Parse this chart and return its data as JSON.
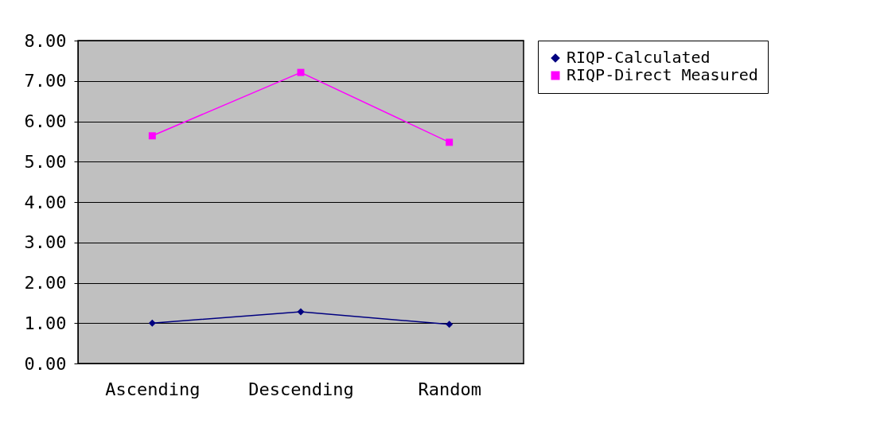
{
  "chart_data": {
    "type": "line",
    "categories": [
      "Ascending",
      "Descending",
      "Random"
    ],
    "series": [
      {
        "name": "RIQP-Calculated",
        "color": "#000080",
        "marker": "diamond",
        "values": [
          1.0,
          1.28,
          0.97
        ]
      },
      {
        "name": "RIQP-Direct Measured",
        "color": "#ff00ff",
        "marker": "square",
        "values": [
          5.64,
          7.21,
          5.48
        ]
      }
    ],
    "ylim": [
      0,
      8
    ],
    "yticks": [
      {
        "value": 0,
        "label": "0.00"
      },
      {
        "value": 1,
        "label": "1.00"
      },
      {
        "value": 2,
        "label": "2.00"
      },
      {
        "value": 3,
        "label": "3.00"
      },
      {
        "value": 4,
        "label": "4.00"
      },
      {
        "value": 5,
        "label": "5.00"
      },
      {
        "value": 6,
        "label": "6.00"
      },
      {
        "value": 7,
        "label": "7.00"
      },
      {
        "value": 8,
        "label": "8.00"
      }
    ],
    "grid": "y",
    "legend": "right",
    "line_style": "solid"
  }
}
